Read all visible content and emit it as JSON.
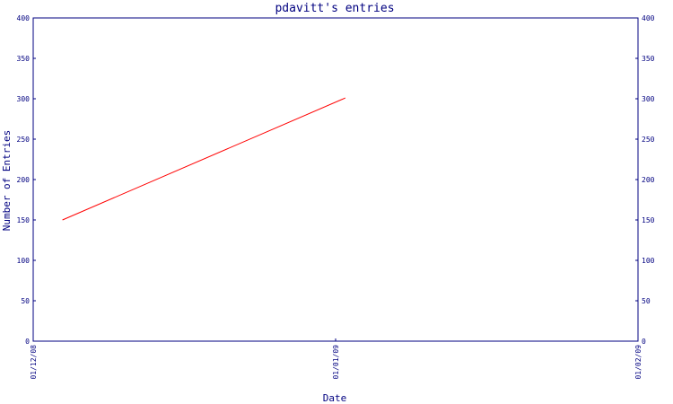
{
  "chart_data": {
    "type": "line",
    "title": "pdavitt's entries",
    "xlabel": "Date",
    "ylabel": "Number of Entries",
    "x_ticks": [
      "01/12/08",
      "01/01/09",
      "01/02/09"
    ],
    "y_ticks": [
      "0",
      "50",
      "100",
      "150",
      "200",
      "250",
      "300",
      "350",
      "400"
    ],
    "ylim": [
      0,
      400
    ],
    "xlim": [
      "2008-12-01",
      "2009-02-01"
    ],
    "series": [
      {
        "color": "#ff0000",
        "x": [
          "2008-12-04",
          "2009-01-02"
        ],
        "y": [
          150,
          301
        ]
      }
    ],
    "grid": false,
    "right_axis": true,
    "axis_color": "#000080"
  }
}
